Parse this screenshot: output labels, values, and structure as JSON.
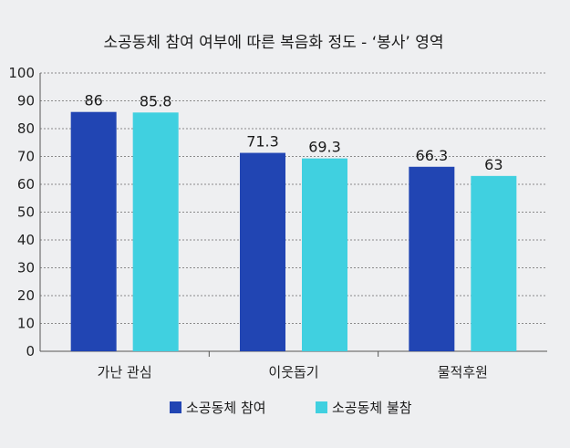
{
  "chart_data": {
    "type": "bar",
    "title": "소공동체 참여 여부에 따른 복음화 정도 - ‘봉사’ 영역",
    "categories": [
      "가난 관심",
      "이웃돕기",
      "물적후원"
    ],
    "series": [
      {
        "name": "소공동체 참여",
        "values": [
          86,
          71.3,
          66.3
        ],
        "color": "#2145b3"
      },
      {
        "name": "소공동체 불참",
        "values": [
          85.8,
          69.3,
          63
        ],
        "color": "#40d0e0"
      }
    ],
    "value_labels": [
      [
        "86",
        "71.3",
        "66.3"
      ],
      [
        "85.8",
        "69.3",
        "63"
      ]
    ],
    "ylim": [
      0,
      100
    ],
    "yticks": [
      0,
      10,
      20,
      30,
      40,
      50,
      60,
      70,
      80,
      90,
      100
    ],
    "grid": true,
    "legend_position": "bottom"
  }
}
